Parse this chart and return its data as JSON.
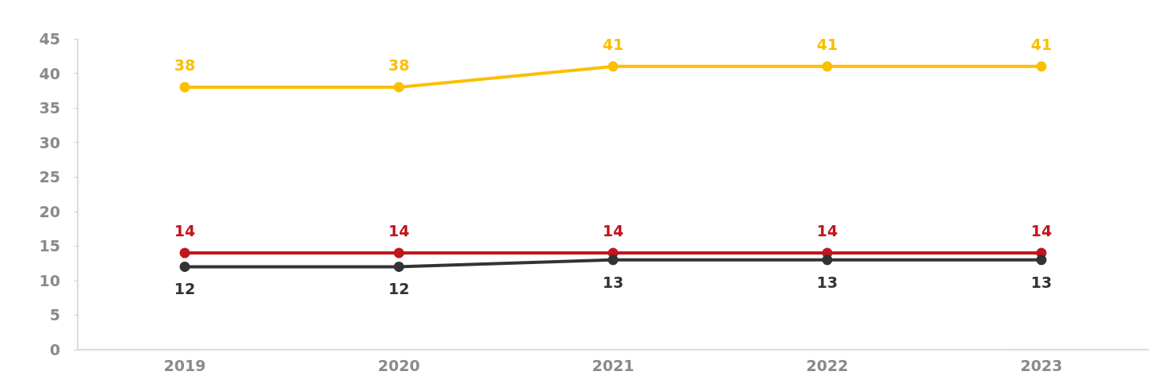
{
  "chart_data": {
    "type": "line",
    "categories": [
      "2019",
      "2020",
      "2021",
      "2022",
      "2023"
    ],
    "series": [
      {
        "color": "#fbbf00",
        "values": [
          38,
          38,
          41,
          41,
          41
        ]
      },
      {
        "color": "#c0161c",
        "values": [
          14,
          14,
          14,
          14,
          14
        ]
      },
      {
        "color": "#333333",
        "values": [
          12,
          12,
          13,
          13,
          13
        ]
      }
    ],
    "ylim": [
      0,
      45
    ],
    "yticks": [
      0,
      5,
      10,
      15,
      20,
      25,
      30,
      35,
      40,
      45
    ],
    "grid": false,
    "data_labels": true,
    "marker": "circle",
    "line_style": "solid"
  }
}
